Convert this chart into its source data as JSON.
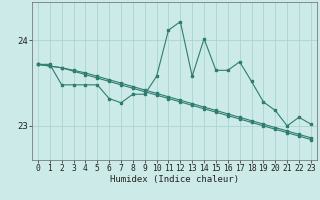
{
  "xlabel": "Humidex (Indice chaleur)",
  "xlim": [
    -0.5,
    23.5
  ],
  "ylim": [
    22.6,
    24.45
  ],
  "yticks": [
    23,
    24
  ],
  "xticks": [
    0,
    1,
    2,
    3,
    4,
    5,
    6,
    7,
    8,
    9,
    10,
    11,
    12,
    13,
    14,
    15,
    16,
    17,
    18,
    19,
    20,
    21,
    22,
    23
  ],
  "bg_color": "#cceae7",
  "grid_color": "#aad4d0",
  "line_color": "#2e7d70",
  "line1_y": [
    23.72,
    23.72,
    23.48,
    23.48,
    23.48,
    23.48,
    23.32,
    23.27,
    23.37,
    23.37,
    23.58,
    24.12,
    24.22,
    23.58,
    24.02,
    23.65,
    23.65,
    23.75,
    23.52,
    23.28,
    23.18,
    23.0,
    23.1,
    23.02
  ],
  "line2_y": [
    23.72,
    23.7,
    23.68,
    23.65,
    23.62,
    23.58,
    23.54,
    23.5,
    23.46,
    23.42,
    23.38,
    23.34,
    23.3,
    23.26,
    23.22,
    23.18,
    23.14,
    23.1,
    23.06,
    23.02,
    22.98,
    22.94,
    22.9,
    22.86
  ],
  "line3_y": [
    23.72,
    23.7,
    23.68,
    23.64,
    23.6,
    23.56,
    23.52,
    23.48,
    23.44,
    23.4,
    23.36,
    23.32,
    23.28,
    23.24,
    23.2,
    23.16,
    23.12,
    23.08,
    23.04,
    23.0,
    22.96,
    22.92,
    22.88,
    22.84
  ]
}
